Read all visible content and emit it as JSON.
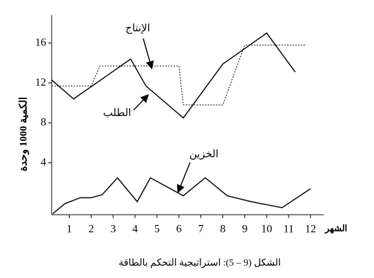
{
  "chart_data": {
    "type": "line",
    "caption": "الشكل (9 – 5): استراتيجية التحكم بالطاقة",
    "y_label": "الكمية 1000 وحدة",
    "x_label": "الشهر",
    "xlim": [
      0.2,
      12.6
    ],
    "xticks": [
      1,
      2,
      3,
      4,
      5,
      6,
      7,
      8,
      9,
      10,
      11,
      12
    ],
    "ylim": [
      -1.2,
      18.8
    ],
    "yticks": [
      4,
      8,
      12,
      16
    ],
    "series": [
      {
        "name": "الطلب",
        "color": "#000000",
        "line_style": "solid",
        "x": [
          0.2,
          1.2,
          3.8,
          4.5,
          6.2,
          8,
          10,
          11.3
        ],
        "values": [
          12.3,
          10.4,
          14.4,
          11.7,
          8.5,
          13.9,
          17.0,
          13.1
        ]
      },
      {
        "name": "الإنتاج",
        "color": "#000000",
        "line_style": "dotted",
        "x": [
          0.2,
          2,
          2.4,
          6,
          6.2,
          8,
          9,
          11.8
        ],
        "values": [
          11.7,
          11.7,
          13.7,
          13.7,
          9.8,
          9.8,
          15.8,
          15.8
        ]
      },
      {
        "name": "الخزين",
        "color": "#000000",
        "line_style": "solid",
        "x": [
          0.25,
          0.8,
          1.5,
          2,
          2.5,
          3.2,
          4.1,
          4.7,
          6.2,
          7.2,
          8.2,
          9.3,
          10.7,
          12
        ],
        "values": [
          -1.1,
          -0.1,
          0.5,
          0.5,
          0.8,
          2.5,
          0.1,
          2.5,
          0.7,
          2.5,
          0.7,
          0.1,
          -0.5,
          1.4
        ]
      }
    ]
  }
}
